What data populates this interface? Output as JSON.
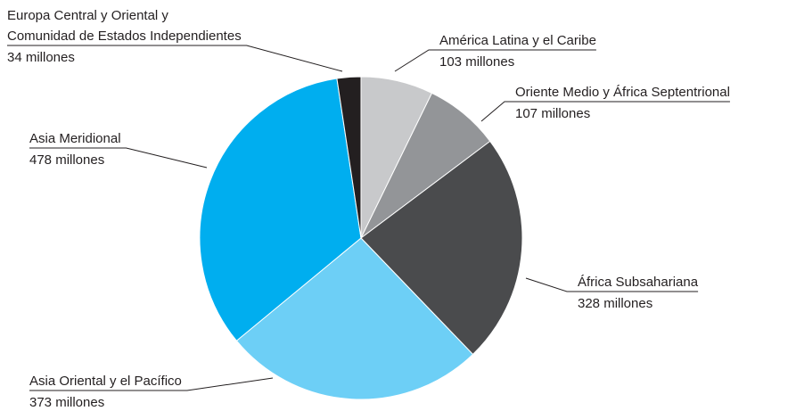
{
  "chart_data": {
    "type": "pie",
    "categories": [
      "América Latina y el Caribe",
      "Oriente Medio y África Septentrional",
      "África Subsahariana",
      "Asia Oriental y el Pacífico",
      "Asia Meridional",
      "Europa Central y Oriental y\nComunidad de Estados Independientes"
    ],
    "values": [
      103,
      107,
      328,
      373,
      478,
      34
    ],
    "value_labels": [
      "103 millones",
      "107 millones",
      "328 millones",
      "373 millones",
      "478 millones",
      "34 millones"
    ],
    "colors": [
      "#c8c9cb",
      "#939598",
      "#4a4b4d",
      "#6dcff6",
      "#00aeef",
      "#231f20"
    ]
  }
}
